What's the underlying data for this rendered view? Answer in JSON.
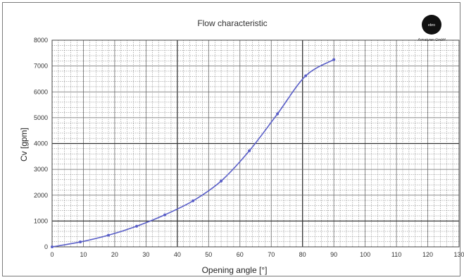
{
  "chart_data": {
    "type": "line",
    "title": "Flow characteristic",
    "xlabel": "Opening angle [°]",
    "ylabel": "Cv [gpm]",
    "xlim": [
      0,
      100
    ],
    "ylim": [
      0,
      8000
    ],
    "x_ticks": [
      "0",
      "10",
      "20",
      "30",
      "40",
      "50",
      "60",
      "70",
      "80",
      "90",
      "100",
      "110",
      "120",
      "130"
    ],
    "y_ticks": [
      "0",
      "1000",
      "2000",
      "3000",
      "4000",
      "5000",
      "6000",
      "7000",
      "8000"
    ],
    "grid": true,
    "series": [
      {
        "color": "#5a5fc8",
        "x": [
          0,
          9,
          18,
          27,
          36,
          45,
          54,
          63,
          72,
          81,
          90
        ],
        "y": [
          0,
          190,
          450,
          800,
          1240,
          1780,
          2550,
          3720,
          5150,
          6620,
          7250
        ]
      }
    ]
  },
  "logo": {
    "name": "company-logo",
    "text": "ebro",
    "subtitle": "Armaturen GmbH"
  }
}
